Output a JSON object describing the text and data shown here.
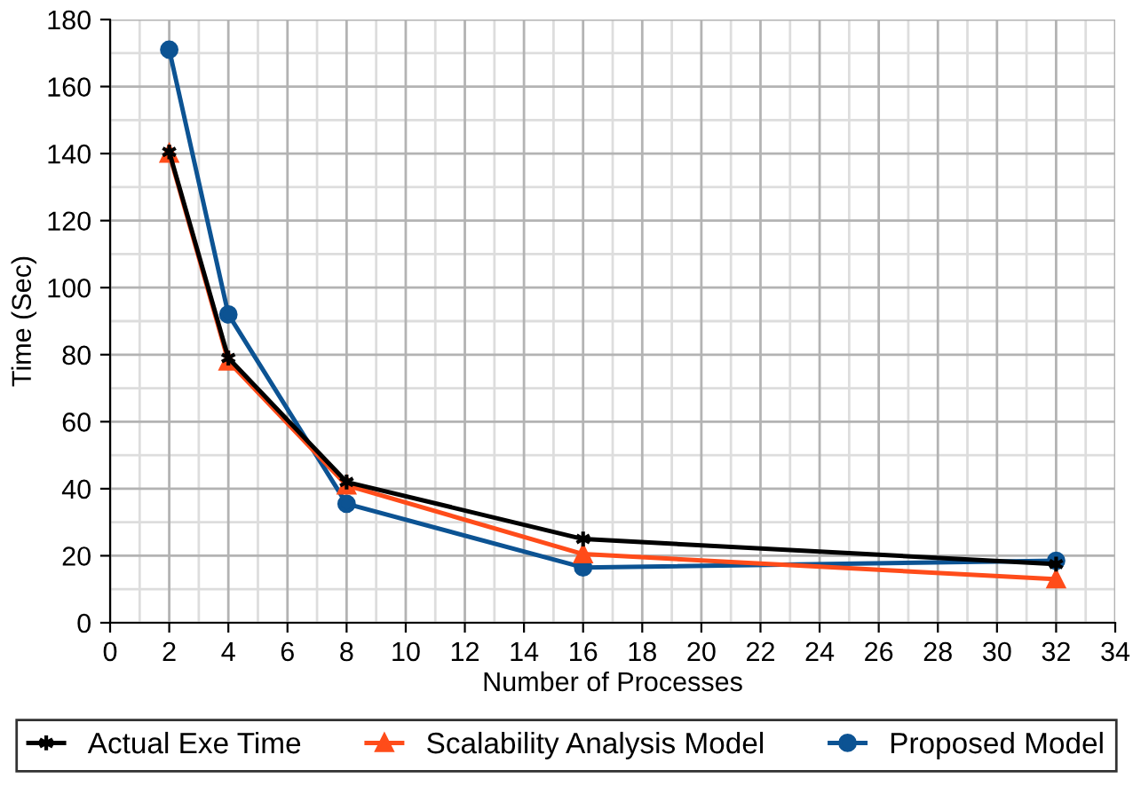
{
  "chart_data": {
    "type": "line",
    "xlabel": "Number of Processes",
    "ylabel": "Time (Sec)",
    "x": [
      2,
      4,
      8,
      16,
      32
    ],
    "series": [
      {
        "name": "Actual Exe Time",
        "color": "#000000",
        "marker": "cross",
        "values": [
          140.5,
          79,
          42,
          25,
          17.5
        ]
      },
      {
        "name": "Scalability Analysis Model",
        "color": "#ff4c1a",
        "marker": "triangle",
        "values": [
          140,
          78,
          41,
          20.5,
          13
        ]
      },
      {
        "name": "Proposed Model",
        "color": "#0c5393",
        "marker": "circle",
        "values": [
          171,
          92,
          35.5,
          16.5,
          18.5
        ]
      }
    ],
    "xlim": [
      0,
      34
    ],
    "xticks": [
      0,
      2,
      4,
      6,
      8,
      10,
      12,
      14,
      16,
      18,
      20,
      22,
      24,
      26,
      28,
      30,
      32,
      34
    ],
    "ylim": [
      0,
      180
    ],
    "yticks": [
      0,
      20,
      40,
      60,
      80,
      100,
      120,
      140,
      160,
      180
    ],
    "grid": true,
    "legend": "bottom",
    "line_style": "solid"
  }
}
